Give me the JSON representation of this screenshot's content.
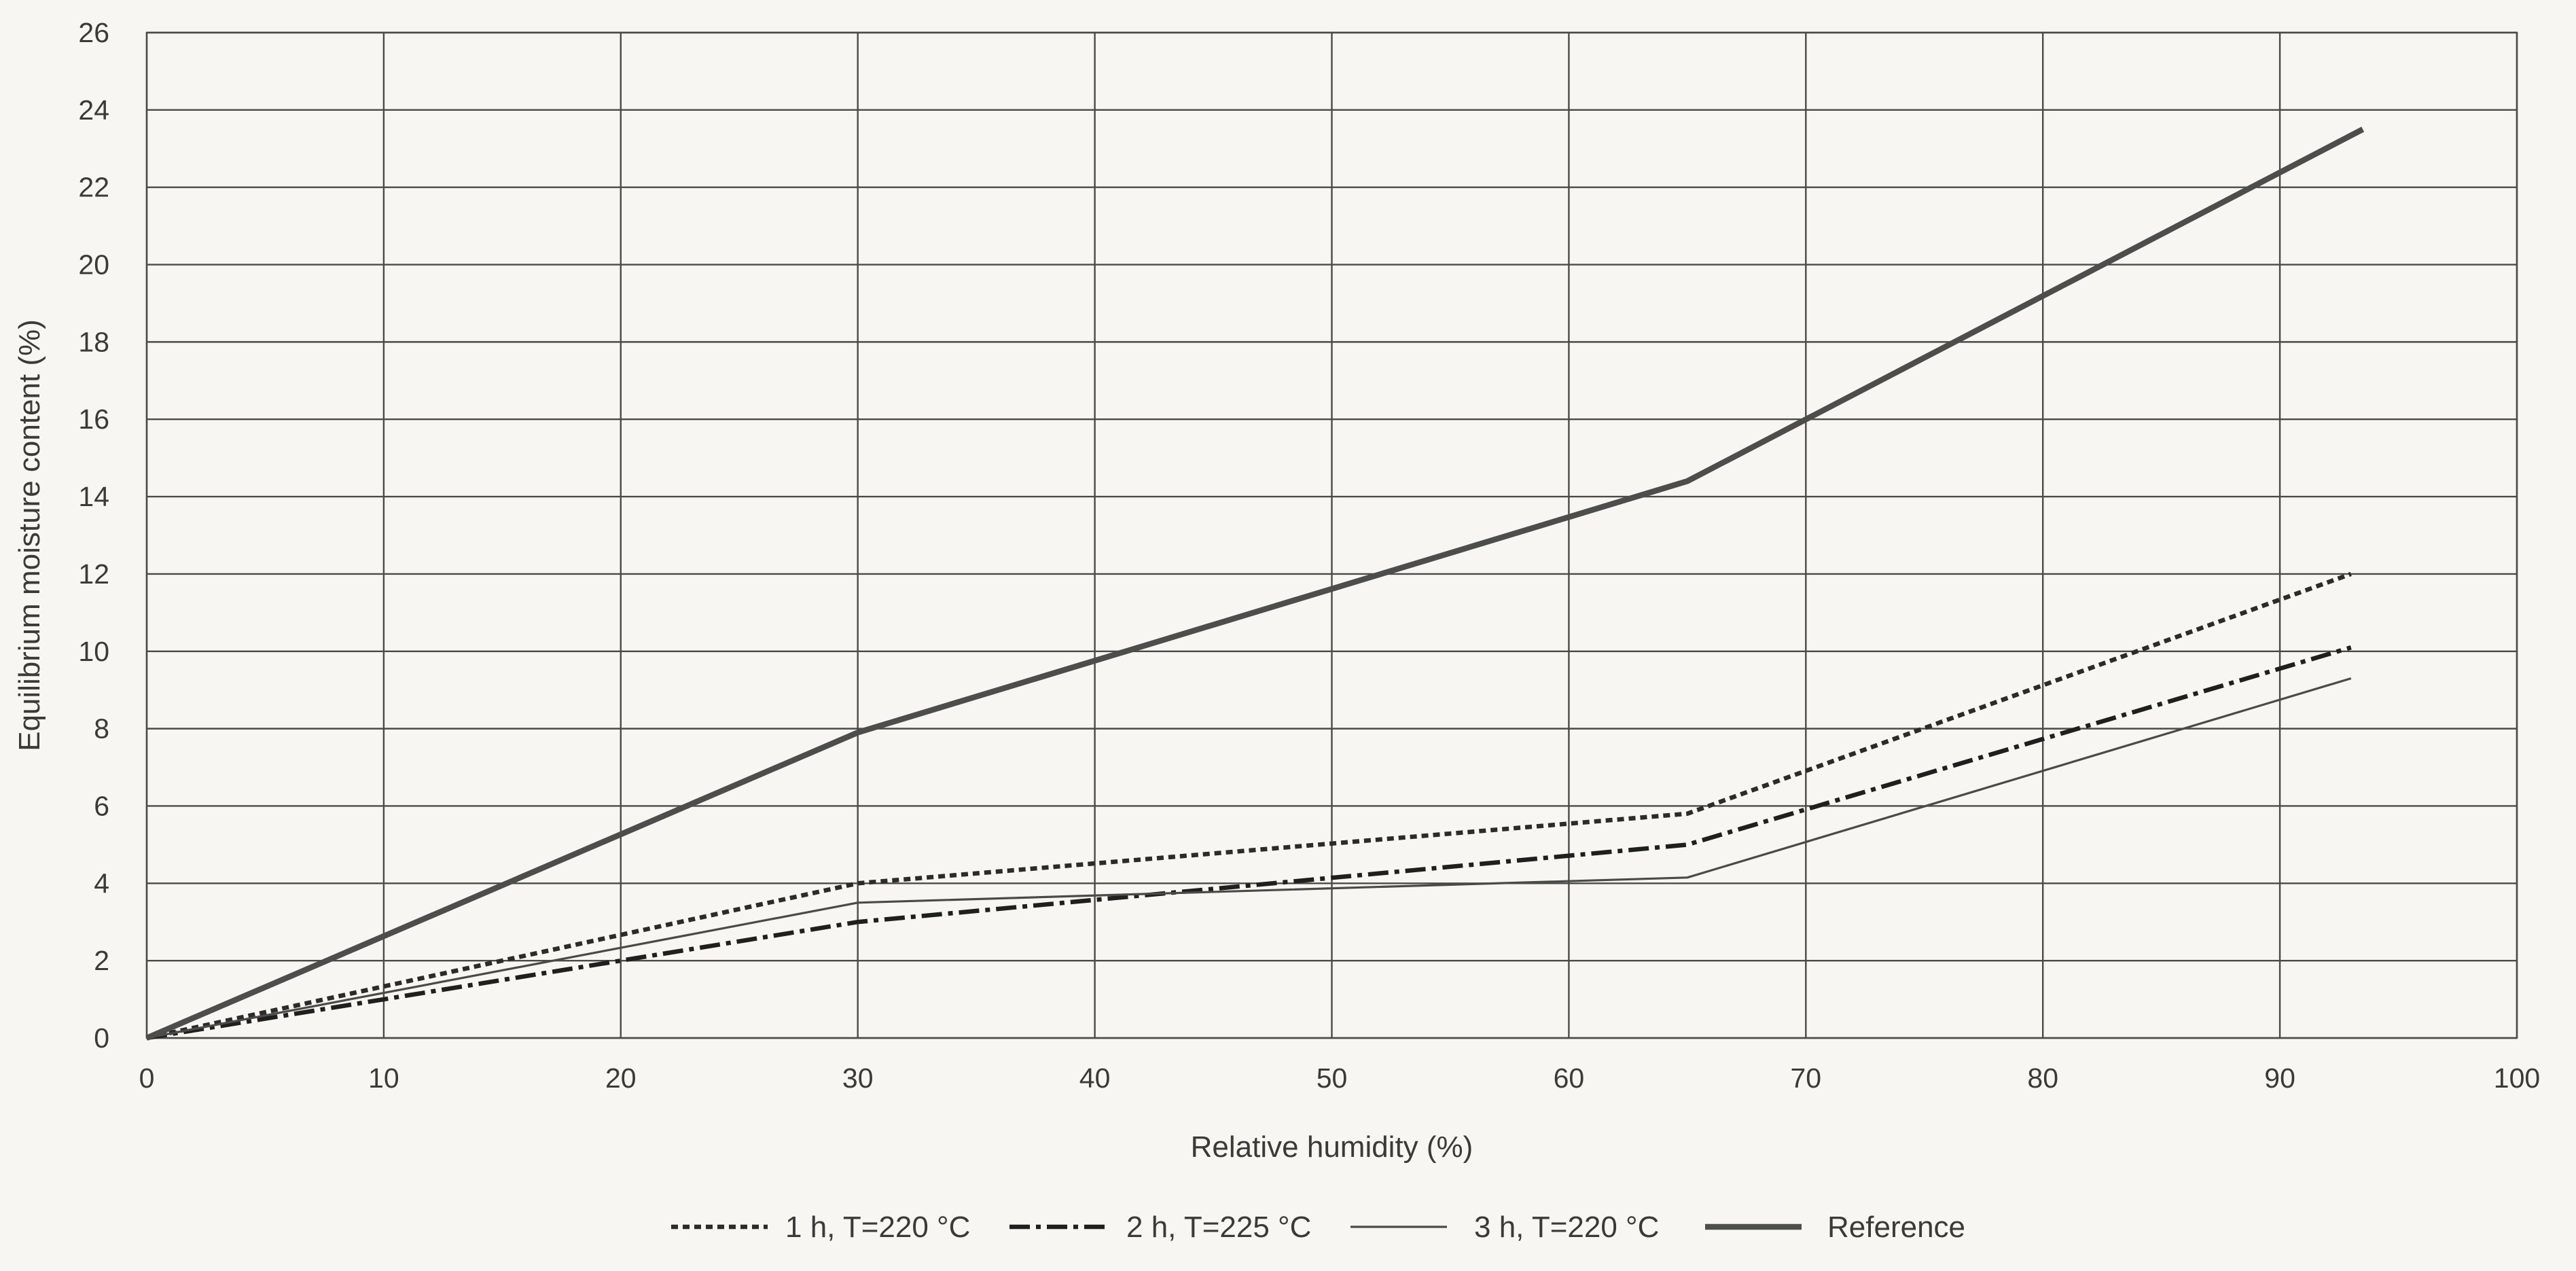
{
  "chart_data": {
    "type": "line",
    "xlabel": "Relative humidity (%)",
    "ylabel": "Equilibrium moisture content (%)",
    "xlim": [
      0,
      100
    ],
    "ylim": [
      0,
      26
    ],
    "x_ticks": [
      0,
      10,
      20,
      30,
      40,
      50,
      60,
      70,
      80,
      90,
      100
    ],
    "y_ticks": [
      0,
      2,
      4,
      6,
      8,
      10,
      12,
      14,
      16,
      18,
      20,
      22,
      24,
      26
    ],
    "grid": true,
    "legend_position": "bottom",
    "series": [
      {
        "name": "1 h, T=220 °C",
        "style": "dotted",
        "color": "#2b2b29",
        "points": [
          [
            0,
            0
          ],
          [
            30,
            4.0
          ],
          [
            65,
            5.8
          ],
          [
            93,
            12.0
          ]
        ]
      },
      {
        "name": "2 h, T=225 °C",
        "style": "dash-dot",
        "color": "#1f1f1d",
        "points": [
          [
            0,
            0
          ],
          [
            30,
            3.0
          ],
          [
            65,
            5.0
          ],
          [
            93,
            10.1
          ]
        ]
      },
      {
        "name": "3 h, T=220 °C",
        "style": "thin-solid",
        "color": "#4a4a48",
        "points": [
          [
            0,
            0
          ],
          [
            30,
            3.5
          ],
          [
            65,
            4.15
          ],
          [
            93,
            9.3
          ]
        ]
      },
      {
        "name": "Reference",
        "style": "thick-solid",
        "color": "#4d4d4b",
        "points": [
          [
            0,
            0
          ],
          [
            30,
            7.9
          ],
          [
            65,
            14.4
          ],
          [
            93.5,
            23.5
          ]
        ]
      }
    ]
  }
}
